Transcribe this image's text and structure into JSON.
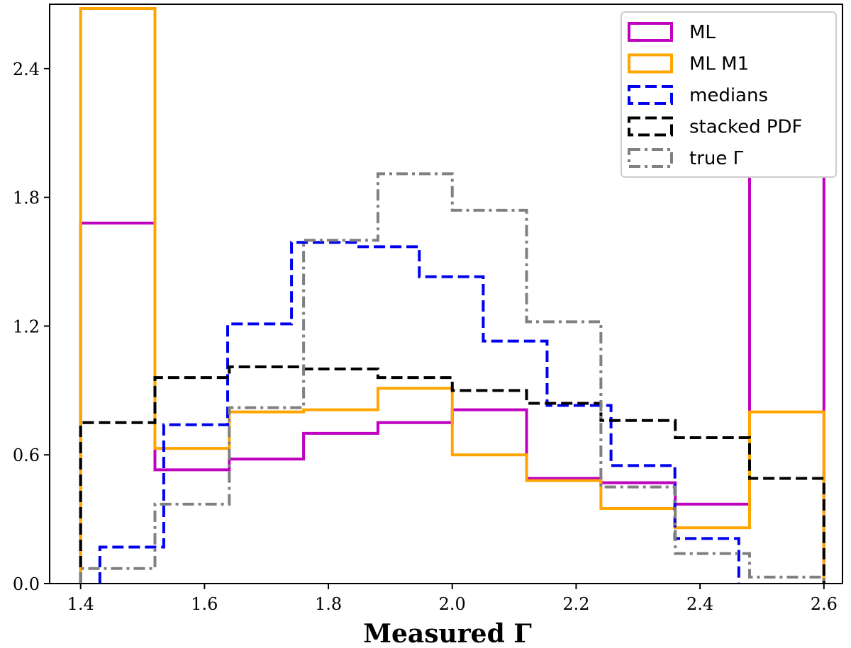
{
  "chart_data": {
    "type": "histogram-step",
    "title": "",
    "xlabel": "Measured Γ",
    "ylabel": "",
    "xlim": [
      1.35,
      2.63
    ],
    "ylim": [
      0.0,
      2.7
    ],
    "xticks": [
      1.4,
      1.6,
      1.8,
      2.0,
      2.2,
      2.4,
      2.6
    ],
    "xtick_labels": [
      "1.4",
      "1.6",
      "1.8",
      "2.0",
      "2.2",
      "2.4",
      "2.6"
    ],
    "yticks": [
      0.0,
      0.6,
      1.2,
      1.8,
      2.4
    ],
    "ytick_labels": [
      "0.0",
      "0.6",
      "1.2",
      "1.8",
      "2.4"
    ],
    "grid": false,
    "legend_position": "top-right",
    "series": [
      {
        "name": "ML",
        "color": "#bf00bf",
        "style": "solid",
        "bin_edges": [
          1.4,
          1.52,
          1.64,
          1.76,
          1.88,
          2.0,
          2.12,
          2.24,
          2.36,
          2.48,
          2.6
        ],
        "values": [
          1.68,
          0.53,
          0.58,
          0.7,
          0.75,
          0.81,
          0.49,
          0.47,
          0.37,
          1.95
        ]
      },
      {
        "name": "ML M1",
        "color": "#ffa500",
        "style": "solid",
        "bin_edges": [
          1.4,
          1.52,
          1.64,
          1.76,
          1.88,
          2.0,
          2.12,
          2.24,
          2.36,
          2.48,
          2.6
        ],
        "values": [
          2.68,
          0.63,
          0.8,
          0.81,
          0.91,
          0.6,
          0.48,
          0.35,
          0.26,
          0.8
        ]
      },
      {
        "name": "medians",
        "color": "#0000ee",
        "style": "dashed",
        "bin_edges": [
          1.4311,
          1.5342,
          1.6374,
          1.7405,
          1.8437,
          1.9468,
          2.05,
          2.1531,
          2.2563,
          2.3594,
          2.4626
        ],
        "values": [
          0.17,
          0.74,
          1.21,
          1.59,
          1.57,
          1.43,
          1.13,
          0.83,
          0.55,
          0.21
        ]
      },
      {
        "name": "stacked PDF",
        "color": "#000000",
        "style": "dashed",
        "bin_edges": [
          1.4,
          1.52,
          1.64,
          1.76,
          1.88,
          2.0,
          2.12,
          2.24,
          2.36,
          2.48,
          2.6
        ],
        "values": [
          0.75,
          0.96,
          1.01,
          1.0,
          0.96,
          0.9,
          0.84,
          0.76,
          0.68,
          0.49
        ]
      },
      {
        "name": "true Γ",
        "color": "#808080",
        "style": "dashdot",
        "bin_edges": [
          1.4,
          1.52,
          1.64,
          1.76,
          1.88,
          2.0,
          2.12,
          2.24,
          2.36,
          2.48,
          2.6
        ],
        "values": [
          0.07,
          0.37,
          0.82,
          1.6,
          1.91,
          1.74,
          1.22,
          0.45,
          0.14,
          0.03
        ]
      }
    ]
  }
}
